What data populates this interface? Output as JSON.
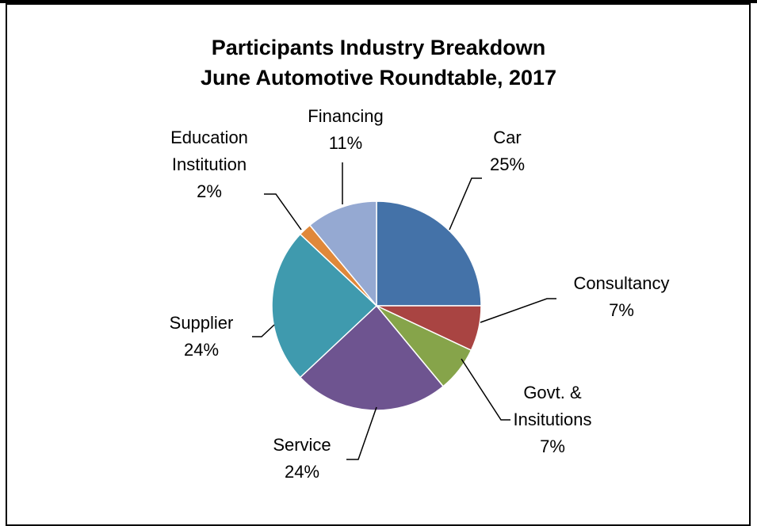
{
  "chart_data": {
    "type": "pie",
    "title": [
      "Participants Industry Breakdown",
      "June Automotive Roundtable, 2017"
    ],
    "start_angle": "12 o'clock",
    "direction": "clockwise",
    "slices": [
      {
        "label": [
          "Car"
        ],
        "value": 25,
        "value_label": "25%",
        "color": "#4472A8"
      },
      {
        "label": [
          "Consultancy"
        ],
        "value": 7,
        "value_label": "7%",
        "color": "#A94442"
      },
      {
        "label": [
          "Govt. &",
          "Insitutions"
        ],
        "value": 7,
        "value_label": "7%",
        "color": "#86A44A"
      },
      {
        "label": [
          "Service"
        ],
        "value": 24,
        "value_label": "24%",
        "color": "#6E5490"
      },
      {
        "label": [
          "Supplier"
        ],
        "value": 24,
        "value_label": "24%",
        "color": "#3F9AAE"
      },
      {
        "label": [
          "Education",
          "Institution"
        ],
        "value": 2,
        "value_label": "2%",
        "color": "#E0883A"
      },
      {
        "label": [
          "Financing"
        ],
        "value": 11,
        "value_label": "11%",
        "color": "#95A9D2"
      }
    ]
  }
}
